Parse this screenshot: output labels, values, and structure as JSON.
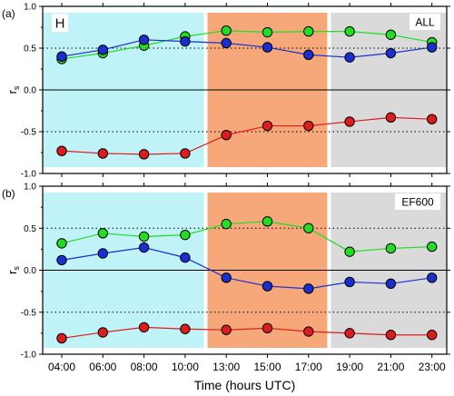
{
  "colors": {
    "early_band": "#bff3f7",
    "mid_band": "#f7a87a",
    "late_band": "#dadada",
    "green": "#22dd22",
    "blue": "#1a2fd0",
    "red": "#dd1c1c"
  },
  "chart_data": [
    {
      "type": "line",
      "panel_label": "(a)",
      "box_label": "H",
      "tag": "ALL",
      "ylabel": "r",
      "ylabel_sub": "s",
      "ylim": [
        -1.0,
        1.0
      ],
      "yticks": [
        "1.0",
        "0.5",
        "0.0",
        "-0.5",
        "-1.0"
      ],
      "grid": "dotted at ±0.5",
      "x_index": [
        0,
        1,
        2,
        3,
        4,
        5,
        6,
        7,
        8,
        9
      ],
      "bands": [
        [
          -0.5,
          3.5
        ],
        [
          3.5,
          6.5
        ],
        [
          6.5,
          9.5
        ]
      ],
      "series": [
        {
          "color": "#22dd22",
          "values": [
            0.37,
            0.44,
            0.53,
            0.64,
            0.71,
            0.69,
            0.7,
            0.7,
            0.66,
            0.57
          ]
        },
        {
          "color": "#1a2fd0",
          "values": [
            0.4,
            0.48,
            0.6,
            0.58,
            0.56,
            0.51,
            0.42,
            0.39,
            0.44,
            0.51
          ]
        },
        {
          "color": "#dd1c1c",
          "values": [
            -0.73,
            -0.76,
            -0.77,
            -0.76,
            -0.54,
            -0.43,
            -0.43,
            -0.38,
            -0.33,
            -0.35
          ]
        }
      ]
    },
    {
      "type": "line",
      "panel_label": "(b)",
      "tag": "EF600",
      "ylabel": "r",
      "ylabel_sub": "s",
      "ylim": [
        -1.0,
        1.0
      ],
      "yticks": [
        "1.0",
        "0.5",
        "0.0",
        "-0.5",
        "-1.0"
      ],
      "grid": "dotted at ±0.5",
      "x_index": [
        0,
        1,
        2,
        3,
        4,
        5,
        6,
        7,
        8,
        9
      ],
      "bands": [
        [
          -0.5,
          3.5
        ],
        [
          3.5,
          6.5
        ],
        [
          6.5,
          9.5
        ]
      ],
      "series": [
        {
          "color": "#22dd22",
          "values": [
            0.32,
            0.44,
            0.4,
            0.42,
            0.55,
            0.58,
            0.5,
            0.22,
            0.26,
            0.28
          ]
        },
        {
          "color": "#1a2fd0",
          "values": [
            0.12,
            0.2,
            0.27,
            0.15,
            -0.09,
            -0.19,
            -0.22,
            -0.14,
            -0.16,
            -0.09
          ]
        },
        {
          "color": "#dd1c1c",
          "values": [
            -0.81,
            -0.74,
            -0.68,
            -0.7,
            -0.71,
            -0.69,
            -0.73,
            -0.75,
            -0.77,
            -0.77
          ]
        }
      ]
    }
  ],
  "x_axis": {
    "ticks": [
      "04:00",
      "06:00",
      "08:00",
      "10:00",
      "13:00",
      "15:00",
      "17:00",
      "19:00",
      "21:00",
      "23:00"
    ],
    "xlabel": "Time (hours UTC)"
  }
}
